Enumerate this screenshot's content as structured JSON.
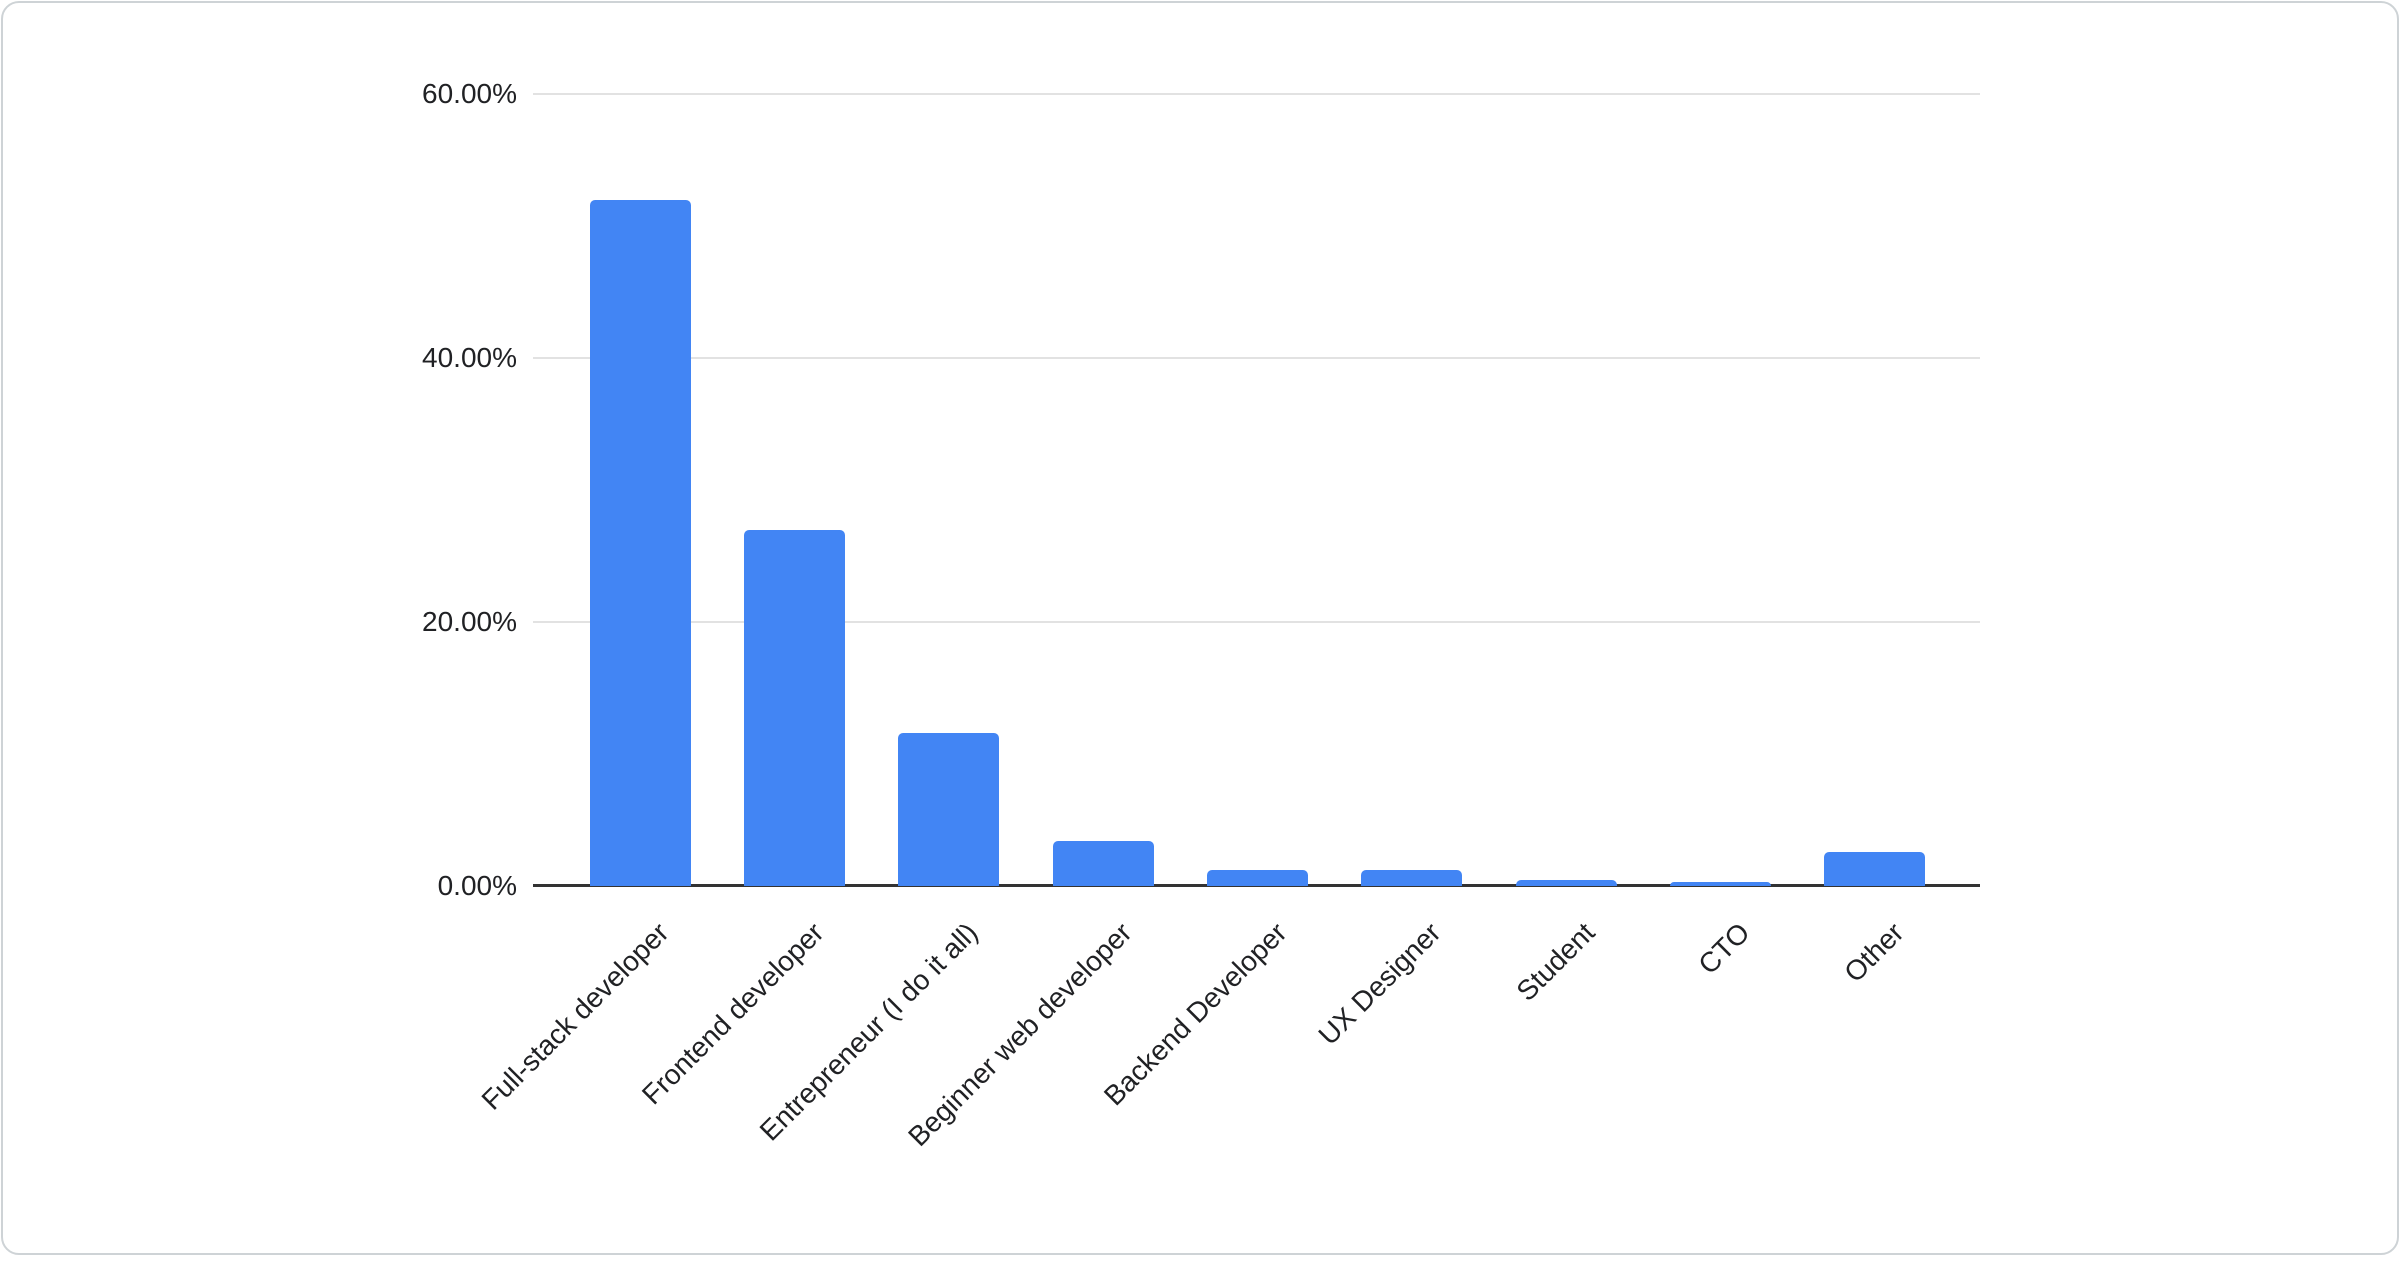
{
  "page": {
    "background": "#ffffff"
  },
  "card": {
    "background": "#ffffff",
    "border_color": "#ced3d6"
  },
  "chart_data": {
    "type": "bar",
    "title": "",
    "categories": [
      "Full-stack developer",
      "Frontend developer",
      "Entrepreneur (I do it all)",
      "Beginner web developer",
      "Backend Developer",
      "UX Designer",
      "Student",
      "CTO",
      "Other"
    ],
    "values": [
      52,
      27,
      11.6,
      3.4,
      1.2,
      1.2,
      0.45,
      0.3,
      2.6
    ],
    "value_unit": "percent",
    "series_color": "#4285f4",
    "xlabel": "",
    "ylabel": "",
    "ylim": [
      0,
      60
    ],
    "y_ticks": [
      {
        "label": "60.00%",
        "value": 60
      },
      {
        "label": "40.00%",
        "value": 40
      },
      {
        "label": "20.00%",
        "value": 20
      },
      {
        "label": "0.00%",
        "value": 0
      }
    ],
    "gridlines": "horizontal",
    "legend": "none",
    "x_label_rotation_deg": 45,
    "axis_line_color": "#333333",
    "gridline_color": "#e2e2e2",
    "text_color": "#202124"
  }
}
